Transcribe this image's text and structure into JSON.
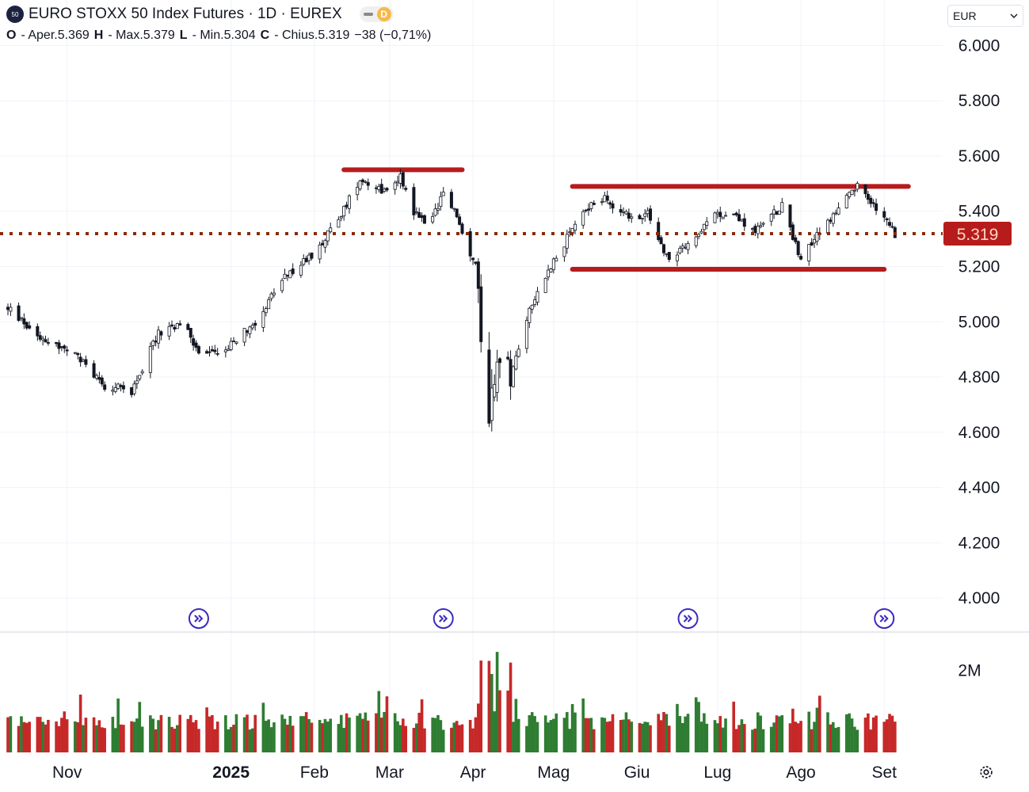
{
  "header": {
    "symbol_logo": "50",
    "title": "EURO STOXX 50 Index Futures · 1D · EUREX",
    "badge": "D"
  },
  "ohlc": {
    "open_label": "O",
    "open_value": "- Aper.5.369",
    "high_label": "H",
    "high_value": "- Max.5.379",
    "low_label": "L",
    "low_value": "- Min.5.304",
    "close_label": "C",
    "close_value": "- Chius.5.319",
    "change": "−38 (−0,71%)"
  },
  "currency": {
    "value": "EUR"
  },
  "colors": {
    "up": "#2e7d32",
    "down": "#c62828",
    "candle": "#131722",
    "level_line": "#b71c1c",
    "price_tag": "#b71c1c"
  },
  "chart_data": {
    "type": "candlestick",
    "ylim": [
      3900,
      6050
    ],
    "y_ticks": [
      {
        "value": 6000,
        "label": "6.000"
      },
      {
        "value": 5800,
        "label": "5.800"
      },
      {
        "value": 5600,
        "label": "5.600"
      },
      {
        "value": 5400,
        "label": "5.400"
      },
      {
        "value": 5200,
        "label": "5.200"
      },
      {
        "value": 5000,
        "label": "5.000"
      },
      {
        "value": 4800,
        "label": "4.800"
      },
      {
        "value": 4600,
        "label": "4.600"
      },
      {
        "value": 4400,
        "label": "4.400"
      },
      {
        "value": 4200,
        "label": "4.200"
      },
      {
        "value": 4000,
        "label": "4.000"
      }
    ],
    "x_ticks": [
      {
        "date": "2024-11-01",
        "label": "Nov"
      },
      {
        "date": "2025-01-01",
        "label": "2025"
      },
      {
        "date": "2025-02-01",
        "label": "Feb"
      },
      {
        "date": "2025-03-01",
        "label": "Mar"
      },
      {
        "date": "2025-04-01",
        "label": "Apr"
      },
      {
        "date": "2025-05-01",
        "label": "Mag"
      },
      {
        "date": "2025-06-01",
        "label": "Giu"
      },
      {
        "date": "2025-07-01",
        "label": "Lug"
      },
      {
        "date": "2025-08-01",
        "label": "Ago"
      },
      {
        "date": "2025-09-01",
        "label": "Set"
      }
    ],
    "x_start": "2024-10-10",
    "x_end": "2025-09-08",
    "last_price": {
      "value": 5319,
      "label": "5.319"
    },
    "levels": [
      {
        "value": 5550,
        "from": "2025-02-12",
        "to": "2025-03-28"
      },
      {
        "value": 5490,
        "from": "2025-05-08",
        "to": "2025-09-10"
      },
      {
        "value": 5190,
        "from": "2025-05-08",
        "to": "2025-09-01"
      }
    ],
    "price_path": [
      [
        "2024-10-10",
        5050
      ],
      [
        "2024-10-20",
        4960
      ],
      [
        "2024-11-05",
        4870
      ],
      [
        "2024-11-15",
        4770
      ],
      [
        "2024-11-25",
        4750
      ],
      [
        "2024-12-05",
        4960
      ],
      [
        "2024-12-15",
        4990
      ],
      [
        "2024-12-20",
        4880
      ],
      [
        "2024-12-30",
        4900
      ],
      [
        "2025-01-10",
        5000
      ],
      [
        "2025-01-20",
        5150
      ],
      [
        "2025-01-31",
        5240
      ],
      [
        "2025-02-10",
        5370
      ],
      [
        "2025-02-18",
        5520
      ],
      [
        "2025-02-28",
        5470
      ],
      [
        "2025-03-05",
        5530
      ],
      [
        "2025-03-10",
        5400
      ],
      [
        "2025-03-15",
        5350
      ],
      [
        "2025-03-22",
        5480
      ],
      [
        "2025-03-28",
        5320
      ],
      [
        "2025-04-02",
        5200
      ],
      [
        "2025-04-07",
        4650
      ],
      [
        "2025-04-10",
        4900
      ],
      [
        "2025-04-15",
        4800
      ],
      [
        "2025-04-22",
        5050
      ],
      [
        "2025-05-01",
        5220
      ],
      [
        "2025-05-12",
        5400
      ],
      [
        "2025-05-20",
        5450
      ],
      [
        "2025-05-30",
        5370
      ],
      [
        "2025-06-05",
        5390
      ],
      [
        "2025-06-13",
        5220
      ],
      [
        "2025-06-20",
        5280
      ],
      [
        "2025-06-30",
        5380
      ],
      [
        "2025-07-05",
        5400
      ],
      [
        "2025-07-15",
        5330
      ],
      [
        "2025-07-25",
        5420
      ],
      [
        "2025-08-01",
        5230
      ],
      [
        "2025-08-10",
        5350
      ],
      [
        "2025-08-22",
        5490
      ],
      [
        "2025-08-28",
        5420
      ],
      [
        "2025-09-05",
        5319
      ]
    ],
    "volume_axis": [
      {
        "value": 2000000,
        "label": "2M"
      }
    ],
    "volume_max": 2700000,
    "event_markers": [
      "2024-12-20",
      "2025-03-21",
      "2025-06-20",
      "2025-09-01"
    ]
  }
}
